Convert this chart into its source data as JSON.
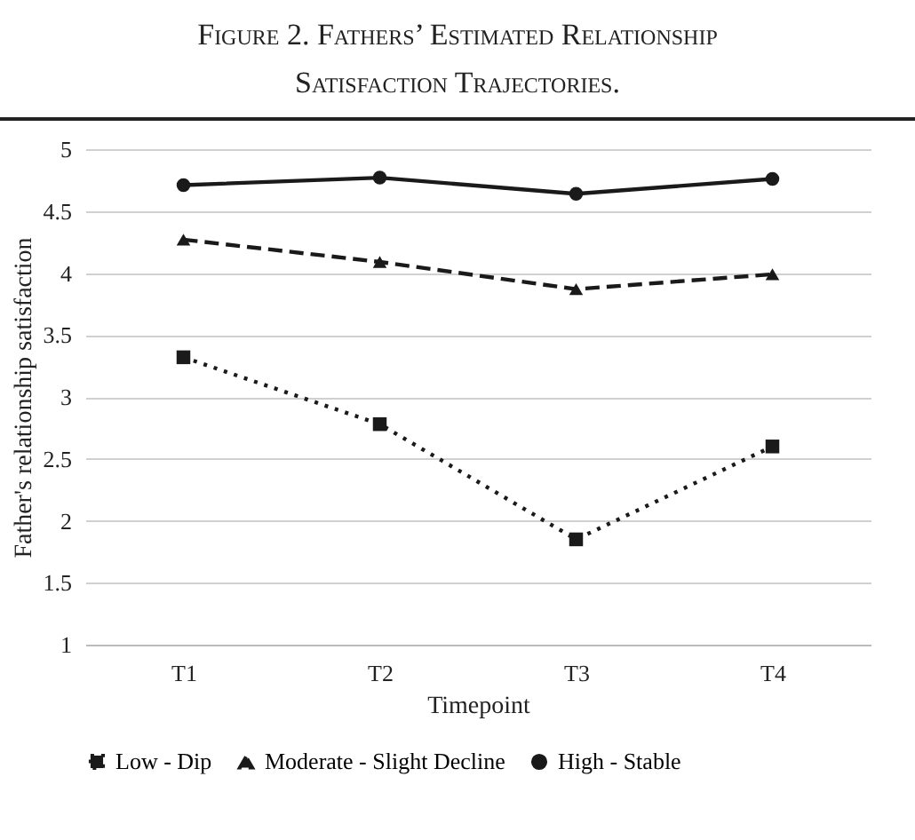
{
  "chart_data": {
    "type": "line",
    "title": "Figure 2. Fathers’ Estimated Relationship Satisfaction Trajectories.",
    "xlabel": "Timepoint",
    "ylabel": "Father's relationship satisfaction",
    "categories": [
      "T1",
      "T2",
      "T3",
      "T4"
    ],
    "series": [
      {
        "name": "Low - Dip",
        "color": "#1a1a1a",
        "line_style": "dotted",
        "marker": "square",
        "values": [
          3.32,
          2.78,
          1.85,
          2.6
        ]
      },
      {
        "name": "Moderate - Slight Decline",
        "color": "#1a1a1a",
        "line_style": "dashed",
        "marker": "triangle",
        "values": [
          4.27,
          4.09,
          3.87,
          3.99
        ]
      },
      {
        "name": "High - Stable",
        "color": "#1a1a1a",
        "line_style": "solid",
        "marker": "circle",
        "values": [
          4.71,
          4.77,
          4.64,
          4.76
        ]
      }
    ],
    "ylim": [
      1,
      5
    ],
    "yticks": [
      1,
      1.5,
      2,
      2.5,
      3,
      3.5,
      4,
      4.5,
      5
    ],
    "grid": "y",
    "legend": "bottom"
  }
}
